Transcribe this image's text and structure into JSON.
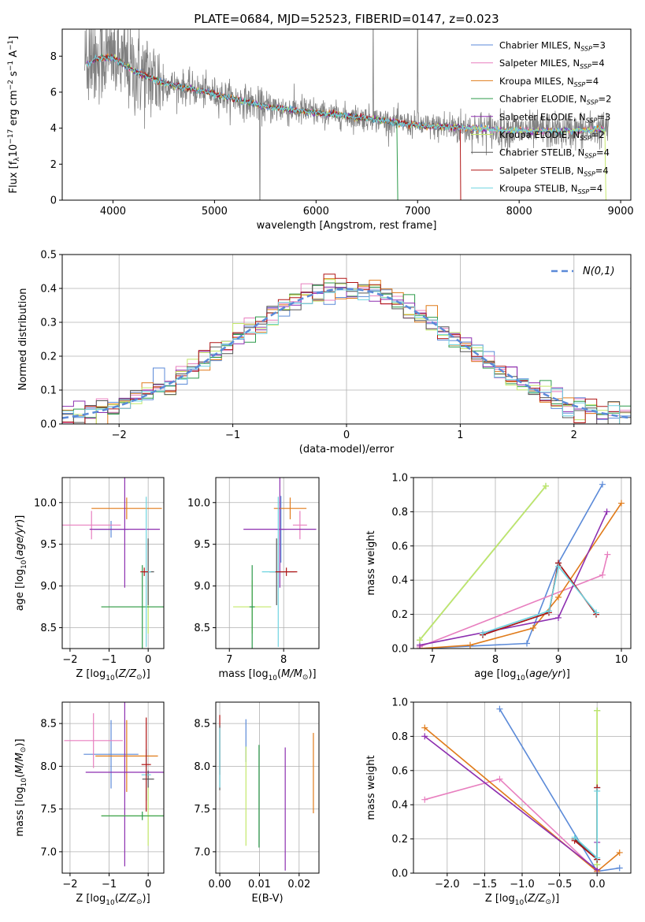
{
  "figure": {
    "title": "PLATE=0684, MJD=52523, FIBERID=0147, z=0.023"
  },
  "colors": {
    "Chabrier MILES": "#5b8ad8",
    "Salpeter MILES": "#e87fbf",
    "Kroupa MILES": "#e07b1a",
    "Chabrier ELODIE": "#2c9a4a",
    "Salpeter ELODIE": "#8d2fb0",
    "Kroupa ELODIE": "#c4e86a",
    "Chabrier STELIB": "#555555",
    "Salpeter STELIB": "#b01515",
    "Kroupa STELIB": "#6fd4e0",
    "data": "#808080",
    "normal": "#5b8ad8"
  },
  "chart_data": [
    {
      "id": "spectrum",
      "type": "line",
      "xlabel": "wavelength [Angstrom, rest frame]",
      "ylabel": "Flux [f_λ10^-17 erg cm^-2 s^-1 A^-1]",
      "xlim": [
        3500,
        9100
      ],
      "ylim": [
        0,
        9.5
      ],
      "xticks": [
        4000,
        5000,
        6000,
        7000,
        8000,
        9000
      ],
      "yticks": [
        0,
        2,
        4,
        6,
        8
      ],
      "legend_position": "top-right",
      "legend": [
        {
          "model": "Chabrier MILES",
          "n_ssp": 3
        },
        {
          "model": "Salpeter MILES",
          "n_ssp": 4
        },
        {
          "model": "Kroupa MILES",
          "n_ssp": 4
        },
        {
          "model": "Chabrier ELODIE",
          "n_ssp": 2
        },
        {
          "model": "Salpeter ELODIE",
          "n_ssp": 3
        },
        {
          "model": "Kroupa ELODIE",
          "n_ssp": 2
        },
        {
          "model": "Chabrier STELIB",
          "n_ssp": 4
        },
        {
          "model": "Salpeter STELIB",
          "n_ssp": 4
        },
        {
          "model": "Kroupa STELIB",
          "n_ssp": 4
        }
      ],
      "continuum": {
        "wavelength": [
          3750,
          3850,
          4000,
          4200,
          4500,
          5000,
          5500,
          6000,
          6500,
          7000,
          7500,
          8000,
          8500,
          8850
        ],
        "flux": [
          7.6,
          7.9,
          7.9,
          7.2,
          6.5,
          5.9,
          5.2,
          4.85,
          4.55,
          4.15,
          4.0,
          3.85,
          3.85,
          3.95
        ]
      }
    },
    {
      "id": "residuals",
      "type": "line",
      "xlabel": "(data-model)/error",
      "ylabel": "Normed distribution",
      "xlim": [
        -2.5,
        2.5
      ],
      "ylim": [
        0,
        0.5
      ],
      "xticks": [
        -2,
        -1,
        0,
        1,
        2
      ],
      "yticks": [
        0.0,
        0.1,
        0.2,
        0.3,
        0.4,
        0.5
      ],
      "legend_label": "N(0,1)",
      "legend_position": "top-right",
      "grid": true
    },
    {
      "id": "age_vs_Z",
      "type": "errorbar",
      "xlabel": "Z [log10(Z/Z⊙)]",
      "ylabel": "age  [log10(age/yr)]",
      "xlim": [
        -2.2,
        0.4
      ],
      "ylim": [
        8.25,
        10.3
      ],
      "xticks": [
        -2,
        -1,
        0
      ],
      "yticks": [
        8.5,
        9.0,
        9.5,
        10.0
      ],
      "grid": true,
      "points": [
        {
          "model": "Chabrier MILES",
          "x": -0.95,
          "xerr": 0.45,
          "y": 9.68,
          "yerr": 0.1
        },
        {
          "model": "Salpeter MILES",
          "x": -1.45,
          "xerr": 0.75,
          "y": 9.73,
          "yerr": 0.17
        },
        {
          "model": "Kroupa MILES",
          "x": -0.55,
          "xerr": 0.9,
          "y": 9.93,
          "yerr": 0.13
        },
        {
          "model": "Salpeter ELODIE",
          "x": -0.6,
          "xerr": 0.9,
          "y": 9.68,
          "yerr": 0.7
        },
        {
          "model": "Kroupa ELODIE",
          "x": 0.0,
          "xerr": 1.2,
          "y": 8.75,
          "yerr": 0.32
        },
        {
          "model": "Chabrier ELODIE",
          "x": -0.15,
          "xerr": 1.05,
          "y": 8.75,
          "yerr": 0.5
        },
        {
          "model": "Chabrier STELIB",
          "x": 0.0,
          "xerr": 0.15,
          "y": 9.17,
          "yerr": 0.4
        },
        {
          "model": "Kroupa STELIB",
          "x": -0.05,
          "xerr": 0.12,
          "y": 9.17,
          "yerr": 0.9
        },
        {
          "model": "Salpeter STELIB",
          "x": -0.1,
          "xerr": 0.1,
          "y": 9.17,
          "yerr": 0.05
        }
      ]
    },
    {
      "id": "age_vs_mass",
      "type": "errorbar",
      "xlabel": "mass [log10(M/M⊙)]",
      "ylabel": "",
      "xlim": [
        6.75,
        8.65
      ],
      "ylim": [
        8.25,
        10.3
      ],
      "xticks": [
        7,
        8
      ],
      "yticks": [
        8.5,
        9.0,
        9.5,
        10.0
      ],
      "grid": true,
      "points": [
        {
          "model": "Chabrier MILES",
          "x": 7.95,
          "xerr": 0.1,
          "y": 9.68,
          "yerr": 0.4
        },
        {
          "model": "Salpeter MILES",
          "x": 8.3,
          "xerr": 0.13,
          "y": 9.73,
          "yerr": 0.17
        },
        {
          "model": "Kroupa MILES",
          "x": 8.12,
          "xerr": 0.3,
          "y": 9.93,
          "yerr": 0.13
        },
        {
          "model": "Salpeter ELODIE",
          "x": 7.93,
          "xerr": 0.67,
          "y": 9.68,
          "yerr": 0.7
        },
        {
          "model": "Kroupa ELODIE",
          "x": 7.42,
          "xerr": 0.35,
          "y": 8.75,
          "yerr": 0.32
        },
        {
          "model": "Chabrier ELODIE",
          "x": 7.42,
          "xerr": 0.05,
          "y": 8.75,
          "yerr": 0.5
        },
        {
          "model": "Chabrier STELIB",
          "x": 7.87,
          "xerr": 0.13,
          "y": 9.17,
          "yerr": 0.4
        },
        {
          "model": "Kroupa STELIB",
          "x": 7.9,
          "xerr": 0.3,
          "y": 9.17,
          "yerr": 0.9
        },
        {
          "model": "Salpeter STELIB",
          "x": 8.05,
          "xerr": 0.2,
          "y": 9.17,
          "yerr": 0.05
        }
      ]
    },
    {
      "id": "mass_weight_vs_age",
      "type": "line",
      "xlabel": "age  [log10(age/yr)]",
      "ylabel": "mass weight",
      "xlim": [
        6.7,
        10.15
      ],
      "ylim": [
        0,
        1.0
      ],
      "xticks": [
        7,
        8,
        9,
        10
      ],
      "yticks": [
        0.0,
        0.2,
        0.4,
        0.6,
        0.8,
        1.0
      ],
      "grid": true,
      "series": [
        {
          "name": "Chabrier MILES",
          "x": [
            6.8,
            8.5,
            9.0,
            9.7
          ],
          "y": [
            0.0,
            0.03,
            0.5,
            0.96
          ]
        },
        {
          "name": "Salpeter MILES",
          "x": [
            6.8,
            9.7,
            9.78
          ],
          "y": [
            0.01,
            0.43,
            0.55
          ]
        },
        {
          "name": "Kroupa MILES",
          "x": [
            6.8,
            7.6,
            8.6,
            9.0,
            10.0
          ],
          "y": [
            0.0,
            0.02,
            0.12,
            0.3,
            0.85
          ]
        },
        {
          "name": "Chabrier ELODIE",
          "x": [
            6.8,
            8.8
          ],
          "y": [
            0.05,
            0.95
          ]
        },
        {
          "name": "Salpeter ELODIE",
          "x": [
            6.8,
            9.0,
            9.77
          ],
          "y": [
            0.02,
            0.18,
            0.8
          ]
        },
        {
          "name": "Kroupa ELODIE",
          "x": [
            6.8,
            8.8
          ],
          "y": [
            0.05,
            0.95
          ]
        },
        {
          "name": "Chabrier STELIB",
          "x": [
            7.8,
            8.85,
            9.0,
            9.6
          ],
          "y": [
            0.08,
            0.21,
            0.5,
            0.2
          ]
        },
        {
          "name": "Salpeter STELIB",
          "x": [
            7.8,
            8.85,
            9.0,
            9.6
          ],
          "y": [
            0.08,
            0.21,
            0.5,
            0.2
          ]
        },
        {
          "name": "Kroupa STELIB",
          "x": [
            7.8,
            8.85,
            9.0,
            9.6
          ],
          "y": [
            0.09,
            0.22,
            0.48,
            0.21
          ]
        }
      ]
    },
    {
      "id": "mass_vs_Z",
      "type": "errorbar",
      "xlabel": "Z [log10(Z/Z⊙)]",
      "ylabel": "mass [log10(M/M⊙)]",
      "xlim": [
        -2.2,
        0.4
      ],
      "ylim": [
        6.75,
        8.75
      ],
      "xticks": [
        -2,
        -1,
        0
      ],
      "yticks": [
        7.0,
        7.5,
        8.0,
        8.5
      ],
      "grid": true,
      "points": [
        {
          "model": "Chabrier MILES",
          "x": -0.95,
          "xerr": 0.7,
          "y": 8.14,
          "yerr": 0.4
        },
        {
          "model": "Salpeter MILES",
          "x": -1.4,
          "xerr": 0.75,
          "y": 8.3,
          "yerr": 0.32
        },
        {
          "model": "Kroupa MILES",
          "x": -0.55,
          "xerr": 0.8,
          "y": 8.12,
          "yerr": 0.42
        },
        {
          "model": "Salpeter ELODIE",
          "x": -0.6,
          "xerr": 1.0,
          "y": 7.93,
          "yerr": 1.1
        },
        {
          "model": "Kroupa ELODIE",
          "x": 0.0,
          "xerr": 1.2,
          "y": 7.42,
          "yerr": 0.35
        },
        {
          "model": "Chabrier ELODIE",
          "x": -0.15,
          "xerr": 1.05,
          "y": 7.42,
          "yerr": 0.05
        },
        {
          "model": "Chabrier STELIB",
          "x": 0.0,
          "xerr": 0.15,
          "y": 7.85,
          "yerr": 0.1
        },
        {
          "model": "Kroupa STELIB",
          "x": -0.05,
          "xerr": 0.12,
          "y": 7.9,
          "yerr": 0.3
        },
        {
          "model": "Salpeter STELIB",
          "x": -0.05,
          "xerr": 0.12,
          "y": 8.02,
          "yerr": 0.55
        }
      ]
    },
    {
      "id": "mass_vs_EBV",
      "type": "errorbar",
      "xlabel": "E(B-V)",
      "ylabel": "",
      "xlim": [
        -0.001,
        0.025
      ],
      "ylim": [
        6.75,
        8.75
      ],
      "xticks": [
        0.0,
        0.01,
        0.02
      ],
      "yticks": [
        7.0,
        7.5,
        8.0,
        8.5
      ],
      "grid": true,
      "points": [
        {
          "model": "Chabrier MILES",
          "x": 0.0066,
          "y": 8.3,
          "yerr": 0.25
        },
        {
          "model": "Kroupa ELODIE",
          "x": 0.0066,
          "y": 7.65,
          "yerr": 0.58
        },
        {
          "model": "Chabrier ELODIE",
          "x": 0.0099,
          "y": 7.65,
          "yerr": 0.6
        },
        {
          "model": "Salpeter ELODIE",
          "x": 0.0165,
          "y": 7.5,
          "yerr": 0.72
        },
        {
          "model": "Kroupa MILES",
          "x": 0.0236,
          "y": 7.92,
          "yerr": 0.47
        },
        {
          "model": "Salpeter STELIB",
          "x": 0.0,
          "y": 8.25,
          "yerr": 0.35
        },
        {
          "model": "Chabrier STELIB",
          "x": 0.0,
          "y": 8.1,
          "yerr": 0.38
        },
        {
          "model": "Kroupa STELIB",
          "x": 0.0,
          "y": 8.1,
          "yerr": 0.35
        }
      ]
    },
    {
      "id": "mass_weight_vs_Z",
      "type": "line",
      "xlabel": "Z [log10(Z/Z⊙)]",
      "ylabel": "mass weight",
      "xlim": [
        -2.45,
        0.45
      ],
      "ylim": [
        0,
        1.0
      ],
      "xticks": [
        -2.0,
        -1.5,
        -1.0,
        -0.5,
        0.0
      ],
      "yticks": [
        0.0,
        0.2,
        0.4,
        0.6,
        0.8,
        1.0
      ],
      "grid": true,
      "series": [
        {
          "name": "Chabrier MILES",
          "x": [
            -1.3,
            0.0,
            0.3
          ],
          "y": [
            0.96,
            0.01,
            0.03
          ]
        },
        {
          "name": "Salpeter MILES",
          "x": [
            -2.3,
            -1.3,
            0.0
          ],
          "y": [
            0.43,
            0.55,
            0.01
          ]
        },
        {
          "name": "Kroupa MILES",
          "x": [
            -2.3,
            0.0,
            0.3
          ],
          "y": [
            0.85,
            0.01,
            0.12
          ]
        },
        {
          "name": "Salpeter ELODIE",
          "x": [
            -2.3,
            0.0,
            0.0
          ],
          "y": [
            0.8,
            0.02,
            0.18
          ]
        },
        {
          "name": "Chabrier ELODIE",
          "x": [
            0.0,
            0.0
          ],
          "y": [
            0.05,
            0.95
          ]
        },
        {
          "name": "Kroupa ELODIE",
          "x": [
            0.0,
            0.0
          ],
          "y": [
            0.05,
            0.95
          ]
        },
        {
          "name": "Chabrier STELIB",
          "x": [
            -0.3,
            0.0,
            0.0
          ],
          "y": [
            0.2,
            0.08,
            0.5
          ]
        },
        {
          "name": "Salpeter STELIB",
          "x": [
            -0.3,
            0.0,
            0.0
          ],
          "y": [
            0.19,
            0.08,
            0.5
          ]
        },
        {
          "name": "Kroupa STELIB",
          "x": [
            -0.3,
            0.0,
            0.0
          ],
          "y": [
            0.21,
            0.09,
            0.48
          ]
        }
      ]
    }
  ]
}
